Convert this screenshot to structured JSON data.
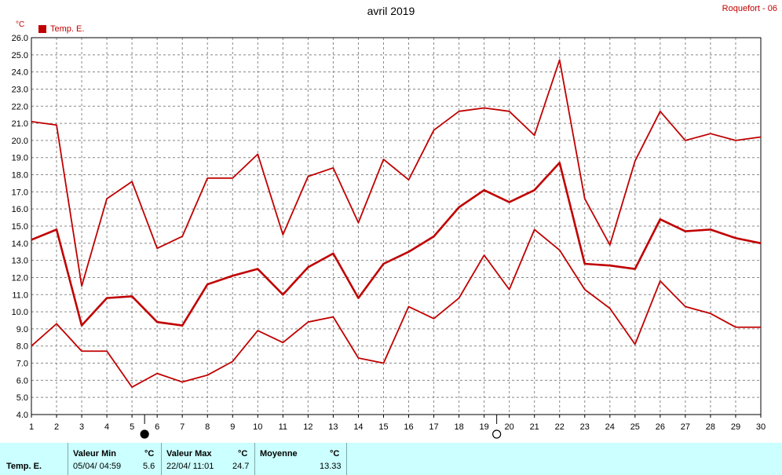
{
  "header": {
    "title": "avril 2019",
    "station": "Roquefort - 06"
  },
  "legend": {
    "label": "Temp. E.",
    "unit": "°C",
    "color": "#c00000"
  },
  "chart_data": {
    "type": "line",
    "title": "avril 2019",
    "ylabel": "°C",
    "x": [
      1,
      2,
      3,
      4,
      5,
      6,
      7,
      8,
      9,
      10,
      11,
      12,
      13,
      14,
      15,
      16,
      17,
      18,
      19,
      20,
      21,
      22,
      23,
      24,
      25,
      26,
      27,
      28,
      29,
      30
    ],
    "xlim": [
      1,
      30
    ],
    "ylim": [
      4.0,
      26.0
    ],
    "yticks": [
      "4.0",
      "5.0",
      "6.0",
      "7.0",
      "8.0",
      "9.0",
      "10.0",
      "11.0",
      "12.0",
      "13.0",
      "14.0",
      "15.0",
      "16.0",
      "17.0",
      "18.0",
      "19.0",
      "20.0",
      "21.0",
      "22.0",
      "23.0",
      "24.0",
      "25.0",
      "26.0"
    ],
    "grid": true,
    "legend_position": "top-left",
    "series": [
      {
        "name": "max",
        "color": "#c00000",
        "values": [
          21.1,
          20.9,
          11.5,
          16.6,
          17.6,
          13.7,
          14.4,
          17.8,
          17.8,
          19.2,
          14.5,
          17.9,
          18.4,
          15.2,
          18.9,
          17.7,
          20.6,
          21.7,
          21.9,
          21.7,
          20.3,
          24.7,
          16.6,
          13.9,
          18.8,
          21.7,
          20.0,
          20.4,
          20.0,
          20.2
        ]
      },
      {
        "name": "moyenne",
        "color": "#c00000",
        "values": [
          14.2,
          14.8,
          9.2,
          10.8,
          10.9,
          9.4,
          9.2,
          11.6,
          12.1,
          12.5,
          11.0,
          12.6,
          13.4,
          10.8,
          12.8,
          13.5,
          14.4,
          16.1,
          17.1,
          16.4,
          17.1,
          18.7,
          12.8,
          12.7,
          12.5,
          15.4,
          14.7,
          14.8,
          14.3,
          14.0
        ]
      },
      {
        "name": "min",
        "color": "#c00000",
        "values": [
          8.0,
          9.3,
          7.7,
          7.7,
          5.6,
          6.4,
          5.9,
          6.3,
          7.1,
          8.9,
          8.2,
          9.4,
          9.7,
          7.3,
          7.0,
          10.3,
          9.6,
          10.8,
          13.3,
          11.3,
          14.8,
          13.6,
          11.3,
          10.2,
          8.1,
          11.8,
          10.3,
          9.9,
          9.1,
          9.1
        ]
      }
    ],
    "moon_phases": [
      {
        "x": 5.5,
        "phase": "new"
      },
      {
        "x": 19.5,
        "phase": "full"
      }
    ]
  },
  "footer": {
    "series_label": "Temp. E.",
    "min": {
      "header": "Valeur Min",
      "unit": "°C",
      "datetime": "05/04/  04:59",
      "value": "5.6"
    },
    "max": {
      "header": "Valeur Max",
      "unit": "°C",
      "datetime": "22/04/  11:01",
      "value": "24.7"
    },
    "avg": {
      "header": "Moyenne",
      "unit": "°C",
      "value": "13.33"
    }
  }
}
